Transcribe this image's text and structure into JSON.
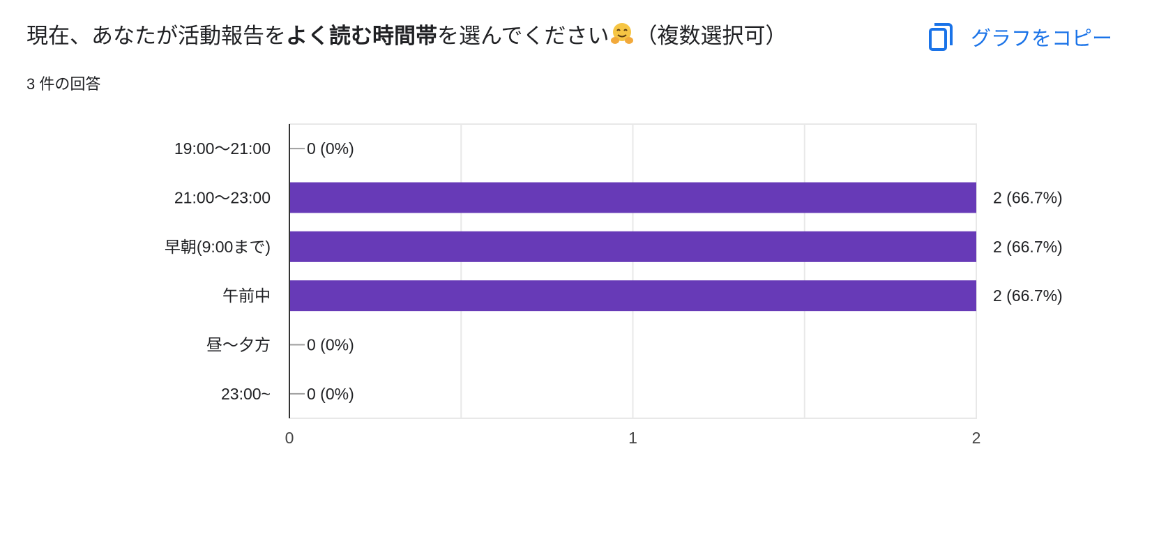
{
  "header": {
    "title_parts": [
      {
        "text": "現在、あなたが活動報告を",
        "bold": false
      },
      {
        "text": "よく読む時間帯",
        "bold": true
      },
      {
        "text": "を選んでください",
        "bold": false
      },
      {
        "emoji": "hugging-face-icon"
      },
      {
        "text": "（複数選択可）",
        "bold": false
      }
    ],
    "response_count": "3 件の回答",
    "copy_label": "グラフをコピー",
    "copy_icon": "copy-icon"
  },
  "colors": {
    "bar": "#673ab7",
    "link": "#1a73e8",
    "grid": "#e8e8e8",
    "axis": "#333333",
    "text": "#202124"
  },
  "chart_data": {
    "type": "bar",
    "orientation": "horizontal",
    "categories": [
      "19:00〜21:00",
      "21:00〜23:00",
      "早朝(9:00まで)",
      "午前中",
      "昼〜夕方",
      "23:00~"
    ],
    "values": [
      0,
      2,
      2,
      2,
      0,
      0
    ],
    "data_labels": [
      "0 (0%)",
      "2 (66.7%)",
      "2 (66.7%)",
      "2 (66.7%)",
      "0 (0%)",
      "0 (0%)"
    ],
    "xlim": [
      0,
      2
    ],
    "x_ticks": [
      "0",
      "1",
      "2"
    ],
    "grid": true
  }
}
